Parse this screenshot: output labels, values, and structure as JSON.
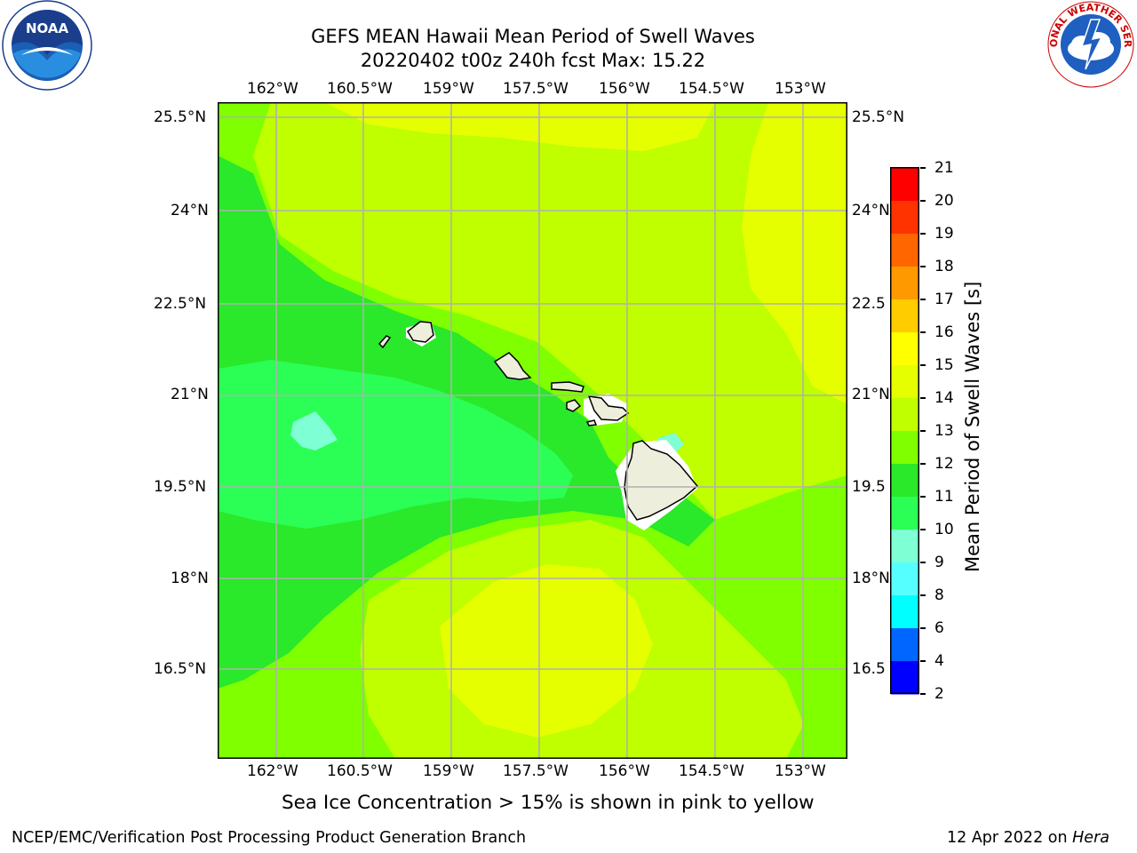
{
  "header": {
    "title_line1": "GEFS MEAN Hawaii Mean Period of Swell Waves",
    "title_line2": "20220402 t00z 240h fcst   Max: 15.22"
  },
  "logos": {
    "noaa_text": "NOAA",
    "noaa_ring_text": "NATIONAL OCEANIC AND ATMOSPHERIC ADMINISTRATION · U.S. DEPARTMENT OF COMMERCE",
    "nws_ring_text": "NATIONAL WEATHER SERVICE",
    "noaa_icon": "noaa-seal-icon",
    "nws_icon": "nws-seal-icon"
  },
  "map": {
    "lon_labels": [
      "162°W",
      "160.5°W",
      "159°W",
      "157.5°W",
      "156°W",
      "154.5°W",
      "153°W"
    ],
    "lat_labels_left": [
      "25.5°N",
      "24°N",
      "22.5°N",
      "21°N",
      "19.5°N",
      "18°N",
      "16.5°N"
    ],
    "lat_labels_right": [
      "25.5°N",
      "24°N",
      "22.5",
      "21°N",
      "19.5",
      "18°N",
      "16.5"
    ],
    "lon_range": [
      -163,
      -152.2
    ],
    "lat_range": [
      15,
      25.7
    ],
    "field_levels_note": "",
    "colors": {
      "c10_11": "#2bff55",
      "c11_12": "#2ae82a",
      "c12_13": "#7fff00",
      "c13_14": "#bfff00",
      "c14_15": "#e6ff00",
      "c9_10": "#7fffd4",
      "land": "#eeeedc",
      "grid": "#b0b0b0"
    }
  },
  "colorbar": {
    "label": "Mean Period of Swell Waves [s]",
    "ticks": [
      "21",
      "20",
      "19",
      "18",
      "17",
      "16",
      "15",
      "14",
      "13",
      "12",
      "11",
      "10",
      "9",
      "8",
      "6",
      "4",
      "2"
    ],
    "colors": [
      "#ff0000",
      "#ff3300",
      "#ff6600",
      "#ff9900",
      "#ffcc00",
      "#ffff00",
      "#e6ff00",
      "#bfff00",
      "#7fff00",
      "#2ae82a",
      "#2bff55",
      "#7fffd4",
      "#55ffff",
      "#00ffff",
      "#0066ff",
      "#0000ff"
    ]
  },
  "footer": {
    "note": "Sea Ice Concentration > 15% is shown in pink to yellow",
    "branch": "NCEP/EMC/Verification Post Processing Product Generation Branch",
    "date": "12 Apr 2022 on ",
    "machine": "Hera"
  }
}
